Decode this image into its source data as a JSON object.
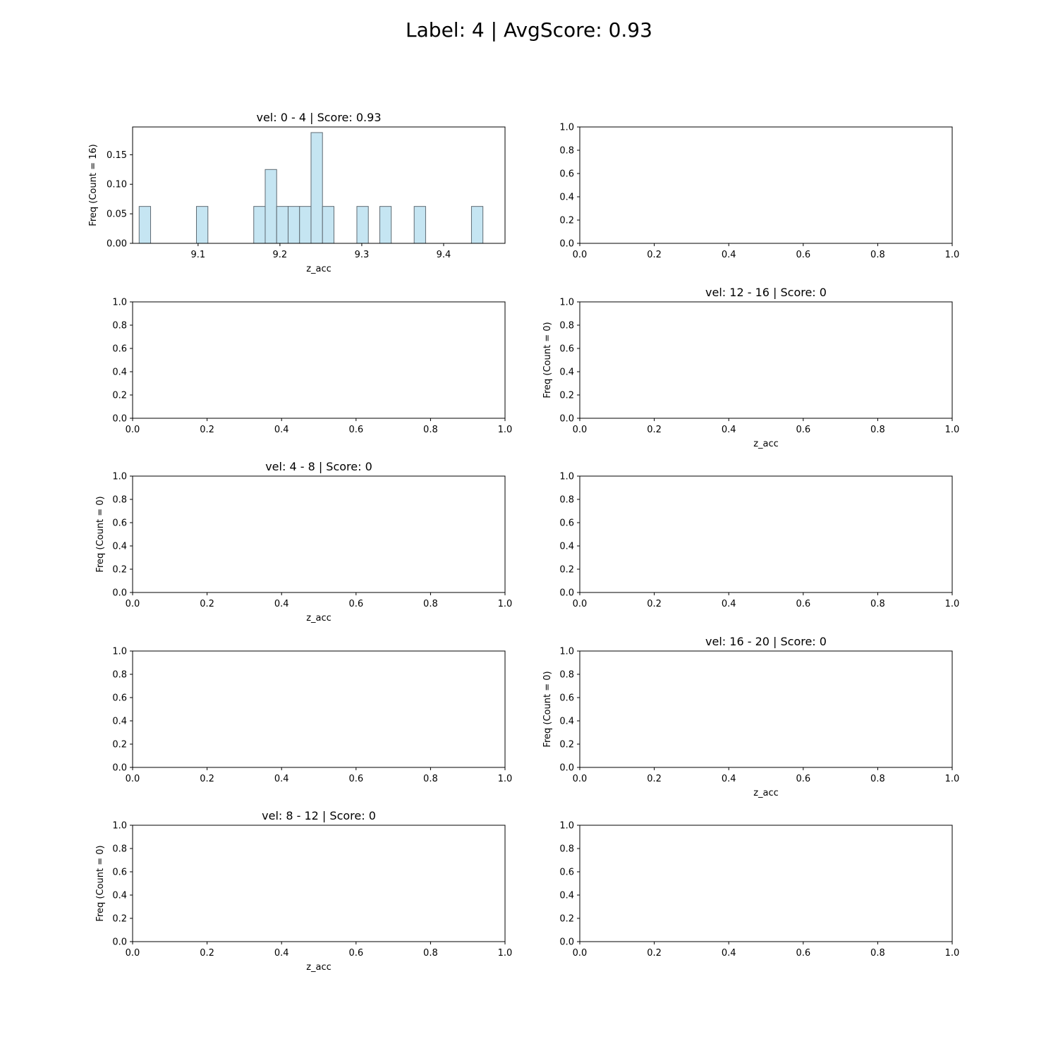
{
  "suptitle": "Label: 4 | AvgScore: 0.93",
  "chart_data": [
    {
      "type": "bar",
      "title": "vel: 0 - 4 | Score: 0.93",
      "xlabel": "z_acc",
      "ylabel": "Freq (Count = 16)",
      "xlim": [
        9.02,
        9.475
      ],
      "ylim": [
        0,
        0.197
      ],
      "xticks": [
        "9.1",
        "9.2",
        "9.3",
        "9.4"
      ],
      "yticks": [
        "0.00",
        "0.05",
        "0.10",
        "0.15"
      ],
      "bin_width": 0.014,
      "bins": [
        {
          "x": 9.035,
          "value": 0.0625
        },
        {
          "x": 9.105,
          "value": 0.0625
        },
        {
          "x": 9.175,
          "value": 0.0625
        },
        {
          "x": 9.189,
          "value": 0.125
        },
        {
          "x": 9.203,
          "value": 0.0625
        },
        {
          "x": 9.217,
          "value": 0.0625
        },
        {
          "x": 9.231,
          "value": 0.0625
        },
        {
          "x": 9.245,
          "value": 0.1875
        },
        {
          "x": 9.259,
          "value": 0.0625
        },
        {
          "x": 9.301,
          "value": 0.0625
        },
        {
          "x": 9.329,
          "value": 0.0625
        },
        {
          "x": 9.371,
          "value": 0.0625
        },
        {
          "x": 9.441,
          "value": 0.0625
        }
      ],
      "bar_color": "#c5e5f2",
      "edge_color": "#5f6b73"
    },
    {
      "type": "bar",
      "title": "",
      "xlabel": "",
      "ylabel": "",
      "xlim": [
        0,
        1
      ],
      "ylim": [
        0,
        1
      ],
      "xticks": [
        "0.0",
        "0.2",
        "0.4",
        "0.6",
        "0.8",
        "1.0"
      ],
      "yticks": [
        "0.0",
        "0.2",
        "0.4",
        "0.6",
        "0.8",
        "1.0"
      ],
      "bins": []
    },
    {
      "type": "bar",
      "title": "",
      "xlabel": "",
      "ylabel": "",
      "xlim": [
        0,
        1
      ],
      "ylim": [
        0,
        1
      ],
      "xticks": [
        "0.0",
        "0.2",
        "0.4",
        "0.6",
        "0.8",
        "1.0"
      ],
      "yticks": [
        "0.0",
        "0.2",
        "0.4",
        "0.6",
        "0.8",
        "1.0"
      ],
      "bins": []
    },
    {
      "type": "bar",
      "title": "vel: 12 - 16 | Score: 0",
      "xlabel": "z_acc",
      "ylabel": "Freq (Count = 0)",
      "xlim": [
        0,
        1
      ],
      "ylim": [
        0,
        1
      ],
      "xticks": [
        "0.0",
        "0.2",
        "0.4",
        "0.6",
        "0.8",
        "1.0"
      ],
      "yticks": [
        "0.0",
        "0.2",
        "0.4",
        "0.6",
        "0.8",
        "1.0"
      ],
      "bins": []
    },
    {
      "type": "bar",
      "title": "vel: 4 - 8 | Score: 0",
      "xlabel": "z_acc",
      "ylabel": "Freq (Count = 0)",
      "xlim": [
        0,
        1
      ],
      "ylim": [
        0,
        1
      ],
      "xticks": [
        "0.0",
        "0.2",
        "0.4",
        "0.6",
        "0.8",
        "1.0"
      ],
      "yticks": [
        "0.0",
        "0.2",
        "0.4",
        "0.6",
        "0.8",
        "1.0"
      ],
      "bins": []
    },
    {
      "type": "bar",
      "title": "",
      "xlabel": "",
      "ylabel": "",
      "xlim": [
        0,
        1
      ],
      "ylim": [
        0,
        1
      ],
      "xticks": [
        "0.0",
        "0.2",
        "0.4",
        "0.6",
        "0.8",
        "1.0"
      ],
      "yticks": [
        "0.0",
        "0.2",
        "0.4",
        "0.6",
        "0.8",
        "1.0"
      ],
      "bins": []
    },
    {
      "type": "bar",
      "title": "",
      "xlabel": "",
      "ylabel": "",
      "xlim": [
        0,
        1
      ],
      "ylim": [
        0,
        1
      ],
      "xticks": [
        "0.0",
        "0.2",
        "0.4",
        "0.6",
        "0.8",
        "1.0"
      ],
      "yticks": [
        "0.0",
        "0.2",
        "0.4",
        "0.6",
        "0.8",
        "1.0"
      ],
      "bins": []
    },
    {
      "type": "bar",
      "title": "vel: 16 - 20 | Score: 0",
      "xlabel": "z_acc",
      "ylabel": "Freq (Count = 0)",
      "xlim": [
        0,
        1
      ],
      "ylim": [
        0,
        1
      ],
      "xticks": [
        "0.0",
        "0.2",
        "0.4",
        "0.6",
        "0.8",
        "1.0"
      ],
      "yticks": [
        "0.0",
        "0.2",
        "0.4",
        "0.6",
        "0.8",
        "1.0"
      ],
      "bins": []
    },
    {
      "type": "bar",
      "title": "vel: 8 - 12 | Score: 0",
      "xlabel": "z_acc",
      "ylabel": "Freq (Count = 0)",
      "xlim": [
        0,
        1
      ],
      "ylim": [
        0,
        1
      ],
      "xticks": [
        "0.0",
        "0.2",
        "0.4",
        "0.6",
        "0.8",
        "1.0"
      ],
      "yticks": [
        "0.0",
        "0.2",
        "0.4",
        "0.6",
        "0.8",
        "1.0"
      ],
      "bins": []
    },
    {
      "type": "bar",
      "title": "",
      "xlabel": "",
      "ylabel": "",
      "xlim": [
        0,
        1
      ],
      "ylim": [
        0,
        1
      ],
      "xticks": [
        "0.0",
        "0.2",
        "0.4",
        "0.6",
        "0.8",
        "1.0"
      ],
      "yticks": [
        "0.0",
        "0.2",
        "0.4",
        "0.6",
        "0.8",
        "1.0"
      ],
      "bins": []
    }
  ]
}
